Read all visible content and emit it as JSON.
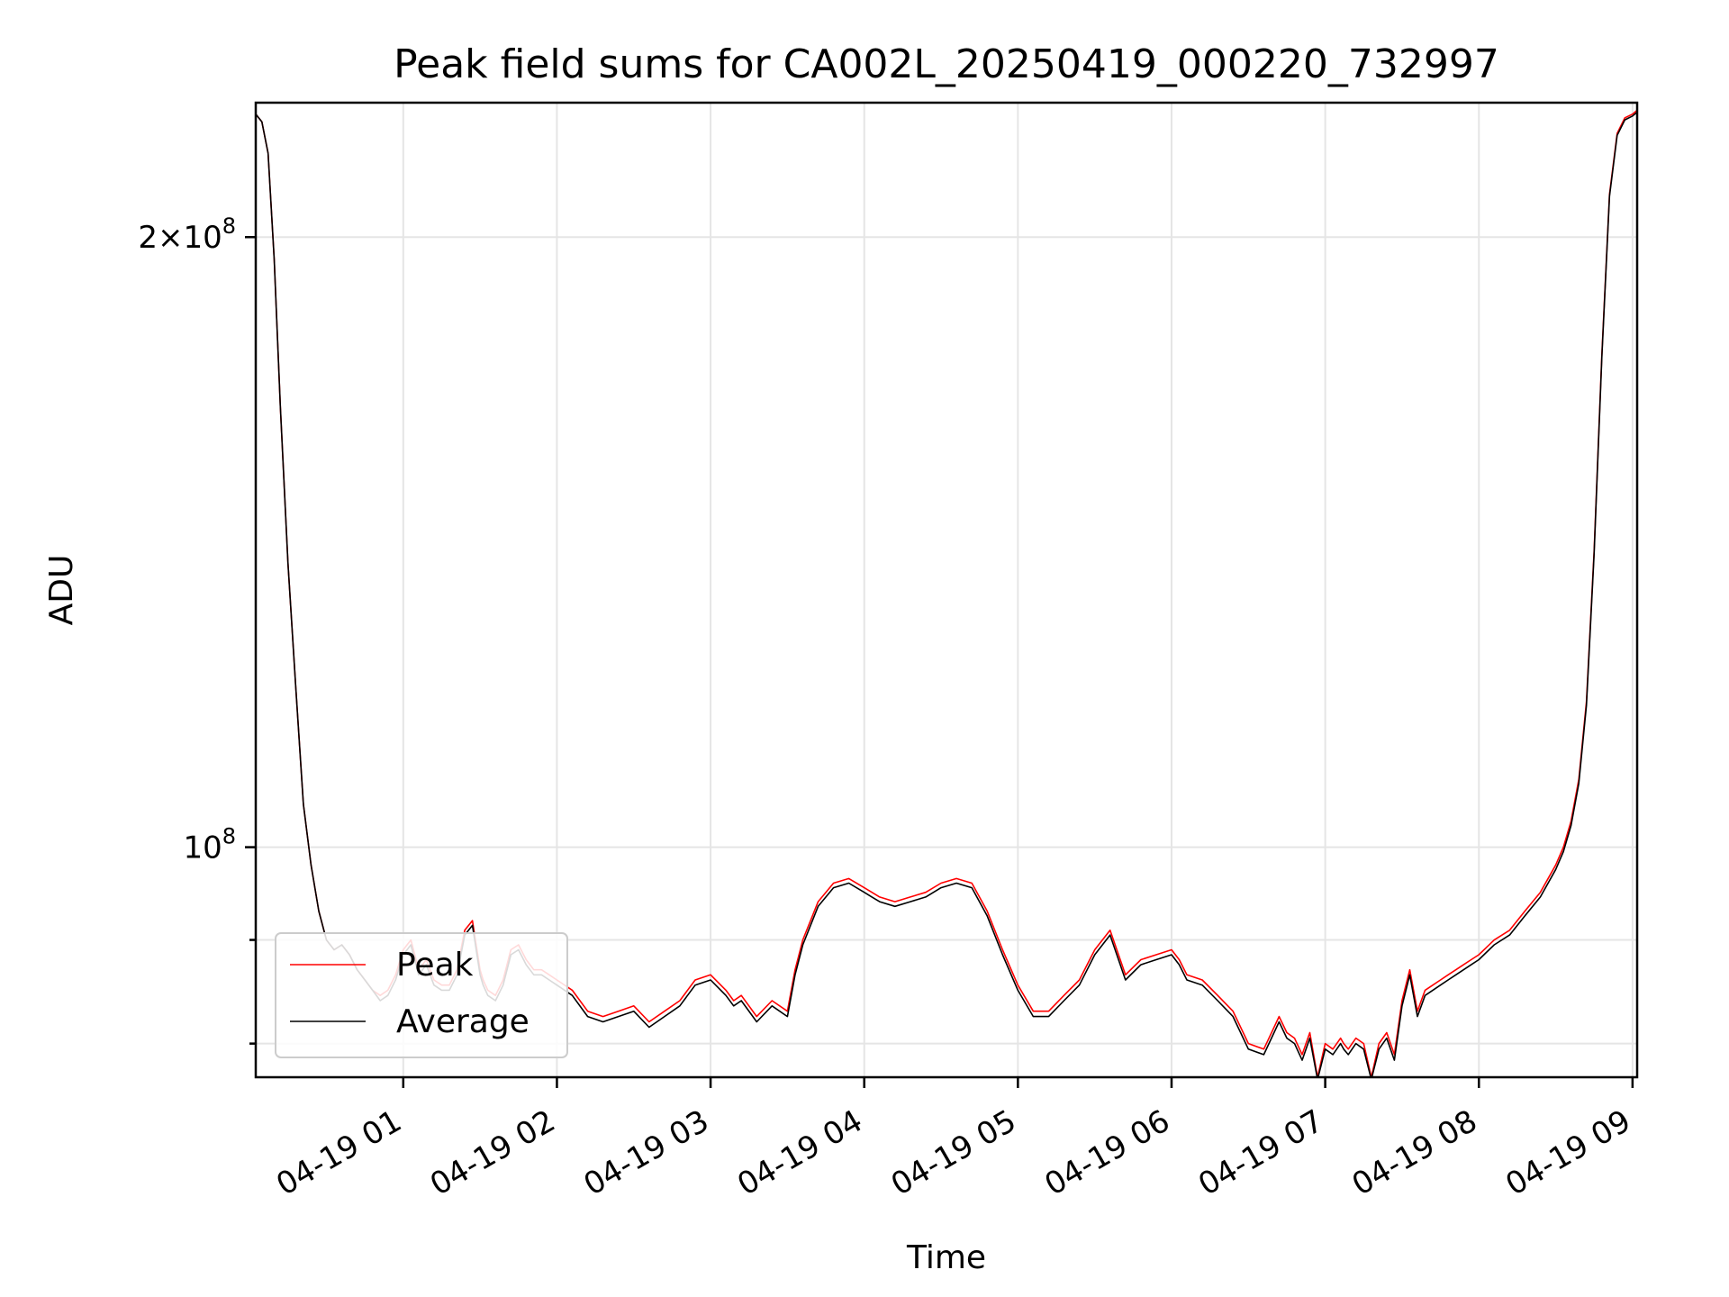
{
  "chart_data": {
    "type": "line",
    "title": "Peak field sums for CA002L_20250419_000220_732997",
    "xlabel": "Time",
    "ylabel": "ADU",
    "y_scale": "log",
    "x_unit": "hours since 2025-04-19 00:00",
    "xlim": [
      0.04,
      9.03
    ],
    "ylim": [
      77000000,
      233000000
    ],
    "x_ticks": [
      1,
      2,
      3,
      4,
      5,
      6,
      7,
      8,
      9
    ],
    "x_tick_labels": [
      "04-19 01",
      "04-19 02",
      "04-19 03",
      "04-19 04",
      "04-19 05",
      "04-19 06",
      "04-19 07",
      "04-19 08",
      "04-19 09"
    ],
    "y_major_ticks": [
      {
        "value": 100000000,
        "base": "10",
        "exp": "8"
      },
      {
        "value": 200000000,
        "base": "2×10",
        "exp": "8"
      }
    ],
    "y_minor_ticks": [
      80000000,
      90000000
    ],
    "grid": true,
    "legend_position": "lower-left",
    "series": [
      {
        "name": "Peak",
        "color": "#ff0000",
        "x": [
          0.04,
          0.08,
          0.12,
          0.16,
          0.2,
          0.25,
          0.3,
          0.35,
          0.4,
          0.45,
          0.5,
          0.55,
          0.6,
          0.65,
          0.7,
          0.75,
          0.8,
          0.85,
          0.9,
          0.95,
          1.0,
          1.05,
          1.1,
          1.15,
          1.2,
          1.25,
          1.3,
          1.35,
          1.4,
          1.45,
          1.5,
          1.52,
          1.55,
          1.6,
          1.65,
          1.7,
          1.75,
          1.8,
          1.85,
          1.9,
          1.95,
          2.0,
          2.1,
          2.2,
          2.3,
          2.4,
          2.5,
          2.6,
          2.7,
          2.8,
          2.9,
          3.0,
          3.1,
          3.15,
          3.2,
          3.3,
          3.4,
          3.5,
          3.55,
          3.6,
          3.7,
          3.8,
          3.9,
          4.0,
          4.05,
          4.1,
          4.2,
          4.3,
          4.4,
          4.5,
          4.6,
          4.7,
          4.8,
          4.9,
          5.0,
          5.1,
          5.2,
          5.3,
          5.4,
          5.5,
          5.6,
          5.7,
          5.8,
          5.9,
          6.0,
          6.05,
          6.1,
          6.2,
          6.3,
          6.4,
          6.5,
          6.6,
          6.7,
          6.75,
          6.8,
          6.85,
          6.9,
          6.95,
          7.0,
          7.05,
          7.1,
          7.12,
          7.15,
          7.2,
          7.25,
          7.3,
          7.35,
          7.4,
          7.45,
          7.5,
          7.55,
          7.6,
          7.65,
          7.7,
          7.75,
          7.8,
          7.85,
          7.9,
          7.95,
          8.0,
          8.1,
          8.2,
          8.3,
          8.4,
          8.5,
          8.55,
          8.6,
          8.65,
          8.7,
          8.75,
          8.8,
          8.85,
          8.9,
          8.95,
          9.0,
          9.03
        ],
        "y": [
          230000000,
          228000000,
          220000000,
          195000000,
          165000000,
          138000000,
          120000000,
          105000000,
          98000000,
          93000000,
          90000000,
          89000000,
          89500000,
          88500000,
          87000000,
          86000000,
          85000000,
          84500000,
          85000000,
          86500000,
          89000000,
          90000000,
          87000000,
          88000000,
          86000000,
          85500000,
          85500000,
          87000000,
          91000000,
          92000000,
          87000000,
          86000000,
          85000000,
          84500000,
          86000000,
          89000000,
          89500000,
          88000000,
          87000000,
          87000000,
          86500000,
          86000000,
          85000000,
          83000000,
          82500000,
          83000000,
          83500000,
          82000000,
          83000000,
          84000000,
          86000000,
          86500000,
          85000000,
          84000000,
          84500000,
          82500000,
          84000000,
          83000000,
          87000000,
          90000000,
          94000000,
          96000000,
          96500000,
          95500000,
          95000000,
          94500000,
          94000000,
          94500000,
          95000000,
          96000000,
          96500000,
          96000000,
          93000000,
          89000000,
          85500000,
          83000000,
          83000000,
          84500000,
          86000000,
          89000000,
          91000000,
          86500000,
          88000000,
          88500000,
          89000000,
          88000000,
          86500000,
          86000000,
          84500000,
          83000000,
          80000000,
          79500000,
          82500000,
          81000000,
          80500000,
          79000000,
          81000000,
          77000000,
          80000000,
          79500000,
          80500000,
          80000000,
          79500000,
          80500000,
          80000000,
          77000000,
          80000000,
          81000000,
          79000000,
          84000000,
          87000000,
          83000000,
          85000000,
          85500000,
          86000000,
          86500000,
          87000000,
          87500000,
          88000000,
          88500000,
          90000000,
          91000000,
          93000000,
          95000000,
          98000000,
          100000000,
          103000000,
          108000000,
          118000000,
          140000000,
          175000000,
          210000000,
          225000000,
          229000000,
          230000000,
          231000000
        ]
      },
      {
        "name": "Average",
        "color": "#000000",
        "x": [
          0.04,
          0.08,
          0.12,
          0.16,
          0.2,
          0.25,
          0.3,
          0.35,
          0.4,
          0.45,
          0.5,
          0.55,
          0.6,
          0.65,
          0.7,
          0.75,
          0.8,
          0.85,
          0.9,
          0.95,
          1.0,
          1.05,
          1.1,
          1.15,
          1.2,
          1.25,
          1.3,
          1.35,
          1.4,
          1.45,
          1.5,
          1.52,
          1.55,
          1.6,
          1.65,
          1.7,
          1.75,
          1.8,
          1.85,
          1.9,
          1.95,
          2.0,
          2.1,
          2.2,
          2.3,
          2.4,
          2.5,
          2.6,
          2.7,
          2.8,
          2.9,
          3.0,
          3.1,
          3.15,
          3.2,
          3.3,
          3.4,
          3.5,
          3.55,
          3.6,
          3.7,
          3.8,
          3.9,
          4.0,
          4.05,
          4.1,
          4.2,
          4.3,
          4.4,
          4.5,
          4.6,
          4.7,
          4.8,
          4.9,
          5.0,
          5.1,
          5.2,
          5.3,
          5.4,
          5.5,
          5.6,
          5.7,
          5.8,
          5.9,
          6.0,
          6.05,
          6.1,
          6.2,
          6.3,
          6.4,
          6.5,
          6.6,
          6.7,
          6.75,
          6.8,
          6.85,
          6.9,
          6.95,
          7.0,
          7.05,
          7.1,
          7.12,
          7.15,
          7.2,
          7.25,
          7.3,
          7.35,
          7.4,
          7.45,
          7.5,
          7.55,
          7.6,
          7.65,
          7.7,
          7.75,
          7.8,
          7.85,
          7.9,
          7.95,
          8.0,
          8.1,
          8.2,
          8.3,
          8.4,
          8.5,
          8.55,
          8.6,
          8.65,
          8.7,
          8.75,
          8.8,
          8.85,
          8.9,
          8.95,
          9.0,
          9.03
        ],
        "y": [
          230000000,
          228000000,
          220000000,
          195000000,
          165000000,
          138000000,
          120000000,
          105000000,
          98000000,
          93000000,
          90000000,
          89000000,
          89500000,
          88500000,
          87000000,
          86000000,
          85000000,
          84000000,
          84500000,
          86000000,
          88500000,
          89500000,
          86500000,
          87500000,
          85500000,
          85000000,
          85000000,
          86500000,
          90500000,
          91500000,
          86500000,
          85500000,
          84500000,
          84000000,
          85500000,
          88500000,
          89000000,
          87500000,
          86500000,
          86500000,
          86000000,
          85500000,
          84500000,
          82500000,
          82000000,
          82500000,
          83000000,
          81500000,
          82500000,
          83500000,
          85500000,
          86000000,
          84500000,
          83500000,
          84000000,
          82000000,
          83500000,
          82500000,
          86500000,
          89500000,
          93500000,
          95500000,
          96000000,
          95000000,
          94500000,
          94000000,
          93500000,
          94000000,
          94500000,
          95500000,
          96000000,
          95500000,
          92500000,
          88500000,
          85000000,
          82500000,
          82500000,
          84000000,
          85500000,
          88500000,
          90500000,
          86000000,
          87500000,
          88000000,
          88500000,
          87500000,
          86000000,
          85500000,
          84000000,
          82500000,
          79500000,
          79000000,
          82000000,
          80500000,
          80000000,
          78500000,
          80500000,
          76800000,
          79500000,
          79000000,
          80000000,
          79500000,
          79000000,
          80000000,
          79500000,
          76800000,
          79500000,
          80500000,
          78500000,
          83500000,
          86500000,
          82500000,
          84500000,
          85000000,
          85500000,
          86000000,
          86500000,
          87000000,
          87500000,
          88000000,
          89500000,
          90500000,
          92500000,
          94500000,
          97500000,
          99500000,
          102500000,
          107500000,
          117500000,
          139500000,
          174500000,
          209500000,
          224500000,
          228500000,
          229500000,
          230500000
        ]
      }
    ]
  }
}
